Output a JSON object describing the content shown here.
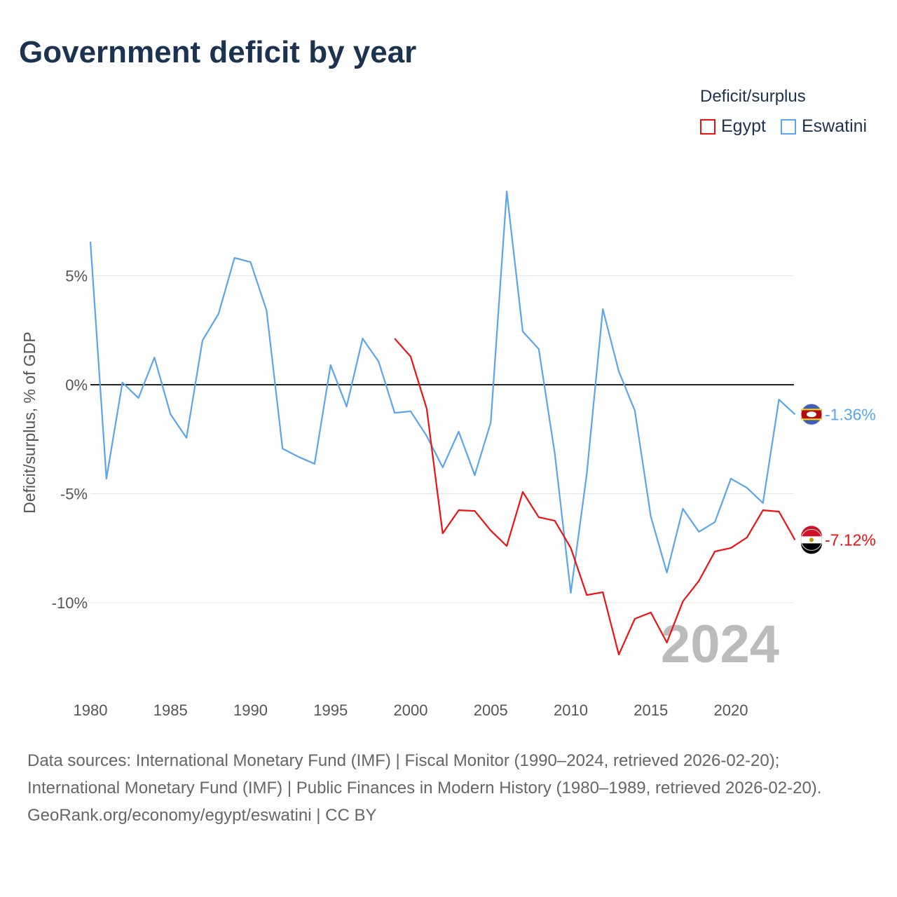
{
  "title": "Government deficit by year",
  "legend": {
    "title": "Deficit/surplus",
    "items": [
      {
        "label": "Egypt",
        "color": "#ee1111"
      },
      {
        "label": "Eswatini",
        "color": "#5aa5ec"
      }
    ]
  },
  "watermark_year": "2024",
  "footer": {
    "sources": "Data sources: International Monetary Fund (IMF) | Fiscal Monitor (1990–2024, retrieved 2026-02-20); International Monetary Fund (IMF) | Public Finances in Modern History (1980–1989, retrieved 2026-02-20).",
    "credit": "GeoRank.org/economy/egypt/eswatini | CC BY"
  },
  "chart_data": {
    "type": "line",
    "title": "Government deficit by year",
    "xlabel": "",
    "ylabel": "Deficit/surplus, % of GDP",
    "xlim": [
      1980,
      2024
    ],
    "ylim": [
      -14,
      9
    ],
    "x_ticks": [
      1980,
      1985,
      1990,
      1995,
      2000,
      2005,
      2010,
      2015,
      2020
    ],
    "y_ticks": [
      {
        "v": 5,
        "label": "5%"
      },
      {
        "v": 0,
        "label": "0%"
      },
      {
        "v": -5,
        "label": "-5%"
      },
      {
        "v": -10,
        "label": "-10%"
      }
    ],
    "series": [
      {
        "name": "Eswatini",
        "color": "#5aa5ec",
        "end_label": "-1.36%",
        "x_start": 1980,
        "values": [
          6.56,
          -4.31,
          0.1,
          -0.61,
          1.25,
          -1.35,
          -2.44,
          2.03,
          3.25,
          5.82,
          5.63,
          3.41,
          -2.93,
          -3.31,
          -3.63,
          0.9,
          -1.0,
          2.12,
          1.06,
          -1.29,
          -1.22,
          -2.35,
          -3.79,
          -2.15,
          -4.15,
          -1.74,
          8.87,
          2.44,
          1.64,
          -3.15,
          -9.55,
          -4.08,
          3.47,
          0.61,
          -1.19,
          -6.05,
          -8.62,
          -5.69,
          -6.75,
          -6.3,
          -4.31,
          -4.73,
          -5.43,
          -0.68,
          -1.36
        ]
      },
      {
        "name": "Egypt",
        "color": "#ee1111",
        "end_label": "-7.12%",
        "x_start": 1999,
        "values": [
          2.12,
          1.29,
          -1.09,
          -6.82,
          -5.76,
          -5.79,
          -6.69,
          -7.4,
          -4.92,
          -6.08,
          -6.24,
          -7.49,
          -9.65,
          -9.52,
          -12.38,
          -10.74,
          -10.45,
          -11.83,
          -9.94,
          -9.0,
          -7.65,
          -7.49,
          -7.01,
          -5.76,
          -5.82,
          -7.12
        ]
      }
    ]
  }
}
